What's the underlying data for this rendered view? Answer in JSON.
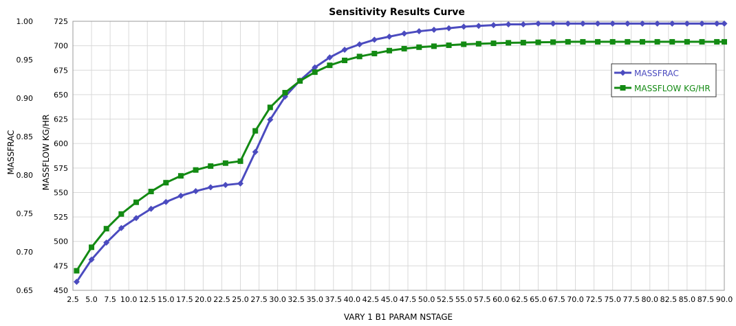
{
  "chart_data": {
    "type": "line",
    "title": "Sensitivity Results Curve",
    "xlabel": "VARY   1 B1 PARAM NSTAGE",
    "ylabel_left": "MASSFRAC",
    "ylabel_right": "MASSFLOW KG/HR",
    "xlim": [
      2.5,
      90.0
    ],
    "ylim_left": [
      0.65,
      1.0
    ],
    "ylim_right": [
      450,
      725
    ],
    "x_ticks": [
      "2.5",
      "5.0",
      "7.5",
      "10.0",
      "12.5",
      "15.0",
      "17.5",
      "20.0",
      "22.5",
      "25.0",
      "27.5",
      "30.0",
      "32.5",
      "35.0",
      "37.5",
      "40.0",
      "42.5",
      "45.0",
      "47.5",
      "50.0",
      "52.5",
      "55.0",
      "57.5",
      "60.0",
      "62.5",
      "65.0",
      "67.5",
      "70.0",
      "72.5",
      "75.0",
      "77.5",
      "80.0",
      "82.5",
      "85.0",
      "87.5",
      "90.0"
    ],
    "y_ticks_left": [
      "0.65",
      "0.70",
      "0.75",
      "0.80",
      "0.85",
      "0.90",
      "0.95",
      "1.00"
    ],
    "y_ticks_right": [
      "450",
      "475",
      "500",
      "525",
      "550",
      "575",
      "600",
      "625",
      "650",
      "675",
      "700",
      "725"
    ],
    "grid": true,
    "legend_position": "top-right",
    "x": [
      3,
      5,
      7,
      9,
      11,
      13,
      15,
      17,
      19,
      21,
      23,
      25,
      27,
      29,
      31,
      33,
      35,
      37,
      39,
      41,
      43,
      45,
      47,
      49,
      51,
      53,
      55,
      57,
      59,
      61,
      63,
      65,
      67,
      69,
      71,
      73,
      75,
      77,
      79,
      81,
      83,
      85,
      87,
      89,
      90
    ],
    "series": [
      {
        "name": "MASSFRAC",
        "axis": "left",
        "color": "#4b4bbf",
        "marker": "diamond",
        "values": [
          0.661,
          0.69,
          0.712,
          0.731,
          0.744,
          0.756,
          0.765,
          0.773,
          0.779,
          0.784,
          0.787,
          0.789,
          0.83,
          0.872,
          0.902,
          0.923,
          0.94,
          0.953,
          0.963,
          0.97,
          0.976,
          0.98,
          0.984,
          0.987,
          0.989,
          0.991,
          0.993,
          0.994,
          0.995,
          0.996,
          0.996,
          0.997,
          0.997,
          0.997,
          0.997,
          0.997,
          0.997,
          0.997,
          0.997,
          0.997,
          0.997,
          0.997,
          0.997,
          0.997,
          0.997
        ]
      },
      {
        "name": "MASSFLOW KG/HR",
        "axis": "right",
        "color": "#138a13",
        "marker": "square",
        "values": [
          470,
          494,
          513,
          528,
          540,
          551,
          560,
          567,
          573,
          577,
          580,
          582,
          613,
          637,
          652,
          664,
          673,
          680,
          685,
          689,
          692,
          695,
          697,
          698.5,
          699.5,
          700.5,
          701.5,
          702,
          702.5,
          703,
          703.2,
          703.5,
          703.7,
          704,
          704,
          704,
          704,
          704,
          704,
          704,
          704,
          704,
          704,
          704,
          704
        ]
      }
    ]
  }
}
